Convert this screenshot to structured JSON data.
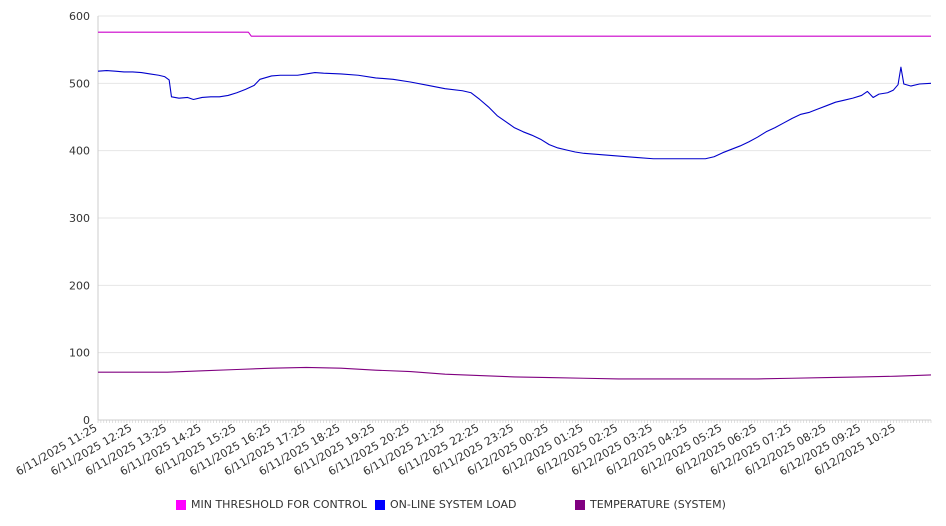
{
  "chart_data": {
    "type": "line",
    "title": "",
    "xlabel": "",
    "ylabel": "",
    "ylim": [
      0,
      600
    ],
    "yticks": [
      0,
      100,
      200,
      300,
      400,
      500,
      600
    ],
    "grid": "horizontal",
    "legend_placement": "bottom",
    "x_tick_labels": [
      "6/11/2025 11:25",
      "6/11/2025 12:25",
      "6/11/2025 13:25",
      "6/11/2025 14:25",
      "6/11/2025 15:25",
      "6/11/2025 16:25",
      "6/11/2025 17:25",
      "6/11/2025 18:25",
      "6/11/2025 19:25",
      "6/11/2025 20:25",
      "6/11/2025 21:25",
      "6/11/2025 22:25",
      "6/11/2025 23:25",
      "6/12/2025 00:25",
      "6/12/2025 01:25",
      "6/12/2025 02:25",
      "6/12/2025 03:25",
      "6/12/2025 04:25",
      "6/12/2025 05:25",
      "6/12/2025 06:25",
      "6/12/2025 07:25",
      "6/12/2025 08:25",
      "6/12/2025 09:25",
      "6/12/2025 10:25"
    ],
    "x_range": [
      "6/11/2025 11:25",
      "6/12/2025 11:25"
    ],
    "series": [
      {
        "name": "MIN THRESHOLD FOR CONTROL",
        "color": "#cc00cc",
        "legend_color": "#ff00ff",
        "points": [
          [
            "6/11/2025 11:25",
            576
          ],
          [
            "6/11/2025 15:45",
            576
          ],
          [
            "6/11/2025 15:50",
            570
          ],
          [
            "6/12/2025 11:25",
            570
          ]
        ]
      },
      {
        "name": "ON-LINE SYSTEM LOAD",
        "color": "#0000cc",
        "legend_color": "#0000ff",
        "points": [
          [
            "6/11/2025 11:25",
            518
          ],
          [
            "6/11/2025 11:40",
            519
          ],
          [
            "6/11/2025 11:55",
            518
          ],
          [
            "6/11/2025 12:10",
            517
          ],
          [
            "6/11/2025 12:25",
            517
          ],
          [
            "6/11/2025 12:40",
            516
          ],
          [
            "6/11/2025 12:55",
            514
          ],
          [
            "6/11/2025 13:10",
            512
          ],
          [
            "6/11/2025 13:20",
            510
          ],
          [
            "6/11/2025 13:28",
            505
          ],
          [
            "6/11/2025 13:32",
            480
          ],
          [
            "6/11/2025 13:45",
            478
          ],
          [
            "6/11/2025 14:00",
            479
          ],
          [
            "6/11/2025 14:10",
            476
          ],
          [
            "6/11/2025 14:25",
            479
          ],
          [
            "6/11/2025 14:40",
            480
          ],
          [
            "6/11/2025 14:55",
            480
          ],
          [
            "6/11/2025 15:10",
            482
          ],
          [
            "6/11/2025 15:25",
            486
          ],
          [
            "6/11/2025 15:40",
            491
          ],
          [
            "6/11/2025 15:55",
            497
          ],
          [
            "6/11/2025 16:05",
            506
          ],
          [
            "6/11/2025 16:25",
            511
          ],
          [
            "6/11/2025 16:40",
            512
          ],
          [
            "6/11/2025 16:55",
            512
          ],
          [
            "6/11/2025 17:10",
            512
          ],
          [
            "6/11/2025 17:25",
            514
          ],
          [
            "6/11/2025 17:40",
            516
          ],
          [
            "6/11/2025 17:55",
            515
          ],
          [
            "6/11/2025 18:25",
            514
          ],
          [
            "6/11/2025 18:55",
            512
          ],
          [
            "6/11/2025 19:25",
            508
          ],
          [
            "6/11/2025 19:55",
            506
          ],
          [
            "6/11/2025 20:25",
            502
          ],
          [
            "6/11/2025 20:55",
            497
          ],
          [
            "6/11/2025 21:25",
            492
          ],
          [
            "6/11/2025 21:55",
            489
          ],
          [
            "6/11/2025 22:10",
            486
          ],
          [
            "6/11/2025 22:25",
            476
          ],
          [
            "6/11/2025 22:40",
            465
          ],
          [
            "6/11/2025 22:55",
            452
          ],
          [
            "6/11/2025 23:10",
            443
          ],
          [
            "6/11/2025 23:25",
            434
          ],
          [
            "6/11/2025 23:40",
            428
          ],
          [
            "6/11/2025 23:55",
            423
          ],
          [
            "6/12/2025 00:10",
            417
          ],
          [
            "6/12/2025 00:25",
            409
          ],
          [
            "6/12/2025 00:40",
            404
          ],
          [
            "6/12/2025 00:55",
            401
          ],
          [
            "6/12/2025 01:10",
            398
          ],
          [
            "6/12/2025 01:25",
            396
          ],
          [
            "6/12/2025 01:55",
            394
          ],
          [
            "6/12/2025 02:25",
            392
          ],
          [
            "6/12/2025 02:55",
            390
          ],
          [
            "6/12/2025 03:25",
            388
          ],
          [
            "6/12/2025 03:55",
            388
          ],
          [
            "6/12/2025 04:25",
            388
          ],
          [
            "6/12/2025 04:55",
            388
          ],
          [
            "6/12/2025 05:10",
            391
          ],
          [
            "6/12/2025 05:25",
            397
          ],
          [
            "6/12/2025 05:40",
            402
          ],
          [
            "6/12/2025 05:55",
            407
          ],
          [
            "6/12/2025 06:10",
            413
          ],
          [
            "6/12/2025 06:25",
            420
          ],
          [
            "6/12/2025 06:40",
            428
          ],
          [
            "6/12/2025 06:55",
            434
          ],
          [
            "6/12/2025 07:10",
            441
          ],
          [
            "6/12/2025 07:25",
            448
          ],
          [
            "6/12/2025 07:40",
            454
          ],
          [
            "6/12/2025 07:55",
            457
          ],
          [
            "6/12/2025 08:10",
            462
          ],
          [
            "6/12/2025 08:25",
            467
          ],
          [
            "6/12/2025 08:40",
            472
          ],
          [
            "6/12/2025 08:55",
            475
          ],
          [
            "6/12/2025 09:10",
            478
          ],
          [
            "6/12/2025 09:25",
            482
          ],
          [
            "6/12/2025 09:35",
            488
          ],
          [
            "6/12/2025 09:45",
            479
          ],
          [
            "6/12/2025 09:55",
            484
          ],
          [
            "6/12/2025 10:10",
            486
          ],
          [
            "6/12/2025 10:20",
            490
          ],
          [
            "6/12/2025 10:28",
            498
          ],
          [
            "6/12/2025 10:33",
            524
          ],
          [
            "6/12/2025 10:38",
            499
          ],
          [
            "6/12/2025 10:50",
            496
          ],
          [
            "6/12/2025 11:05",
            499
          ],
          [
            "6/12/2025 11:25",
            500
          ]
        ]
      },
      {
        "name": "TEMPERATURE (SYSTEM)",
        "color": "#800080",
        "legend_color": "#800080",
        "points": [
          [
            "6/11/2025 11:25",
            71
          ],
          [
            "6/11/2025 12:25",
            71
          ],
          [
            "6/11/2025 13:25",
            71
          ],
          [
            "6/11/2025 14:25",
            73
          ],
          [
            "6/11/2025 15:25",
            75
          ],
          [
            "6/11/2025 16:25",
            77
          ],
          [
            "6/11/2025 17:25",
            78
          ],
          [
            "6/11/2025 18:25",
            77
          ],
          [
            "6/11/2025 19:25",
            74
          ],
          [
            "6/11/2025 20:25",
            72
          ],
          [
            "6/11/2025 21:25",
            68
          ],
          [
            "6/11/2025 22:25",
            66
          ],
          [
            "6/11/2025 23:25",
            64
          ],
          [
            "6/12/2025 00:25",
            63
          ],
          [
            "6/12/2025 01:25",
            62
          ],
          [
            "6/12/2025 02:25",
            61
          ],
          [
            "6/12/2025 03:25",
            61
          ],
          [
            "6/12/2025 04:25",
            61
          ],
          [
            "6/12/2025 05:25",
            61
          ],
          [
            "6/12/2025 06:25",
            61
          ],
          [
            "6/12/2025 07:25",
            62
          ],
          [
            "6/12/2025 08:25",
            63
          ],
          [
            "6/12/2025 09:25",
            64
          ],
          [
            "6/12/2025 10:25",
            65
          ],
          [
            "6/12/2025 11:25",
            67
          ]
        ]
      }
    ]
  }
}
